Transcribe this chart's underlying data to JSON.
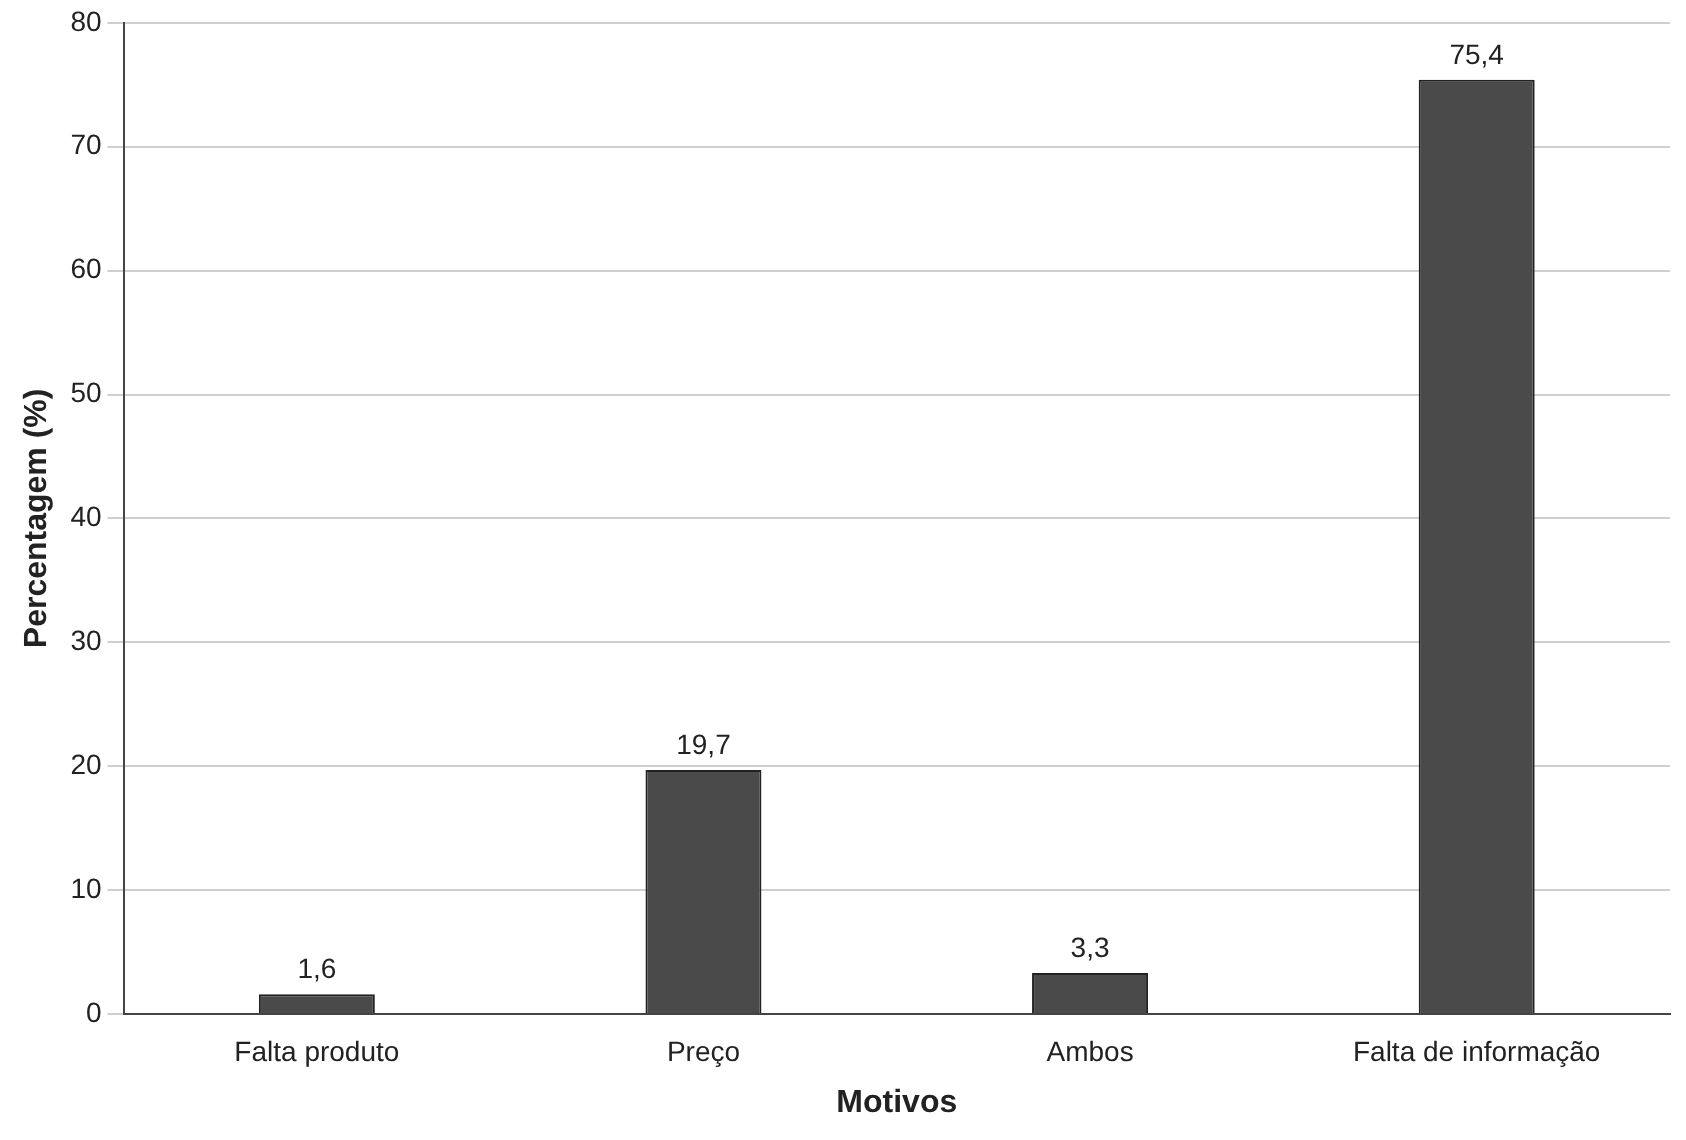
{
  "chart_data": {
    "type": "bar",
    "xlabel": "Motivos",
    "ylabel": "Percentagem (%)",
    "categories": [
      "Falta produto",
      "Preço",
      "Ambos",
      "Falta de informação"
    ],
    "values": [
      1.6,
      19.7,
      3.3,
      75.4
    ],
    "value_labels": [
      "1,6",
      "19,7",
      "3,3",
      "75,4"
    ],
    "color": "#4a4a4a",
    "ylim": [
      0,
      80
    ],
    "yticks": [
      0,
      10,
      20,
      30,
      40,
      50,
      60,
      70,
      80
    ],
    "grid": "y",
    "legend": false
  }
}
